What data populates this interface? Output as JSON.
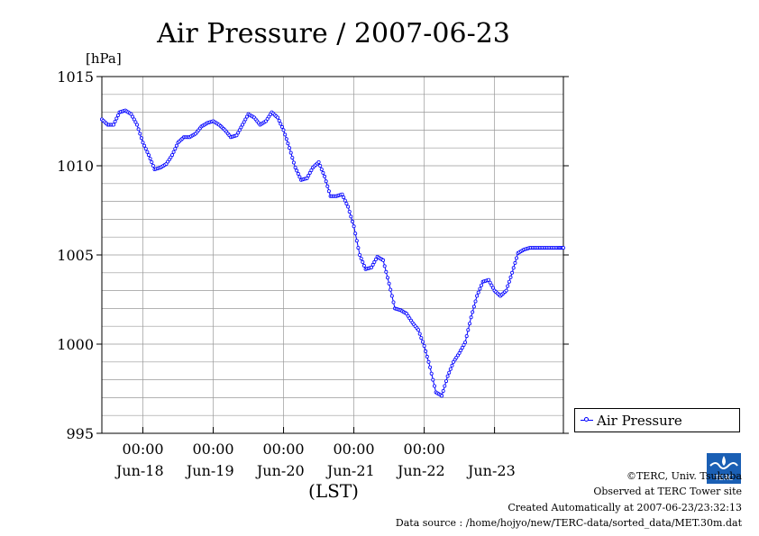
{
  "chart_data": {
    "type": "line",
    "title": "Air Pressure / 2007-06-23",
    "ylabel": "[hPa]",
    "xlabel": "(LST)",
    "ylim": [
      995,
      1015
    ],
    "yticks": [
      995,
      1000,
      1005,
      1010,
      1015
    ],
    "xlim_days": [
      "2007-06-17 10:00",
      "2007-06-23 23:30"
    ],
    "x_time_ticks": [
      "00:00",
      "00:00",
      "00:00",
      "00:00",
      "00:00"
    ],
    "x_date_labels": [
      "Jun-18",
      "Jun-19",
      "Jun-20",
      "Jun-21",
      "Jun-22",
      "Jun-23"
    ],
    "grid": true,
    "legend_position": "right",
    "series": [
      {
        "name": "Air Pressure",
        "color": "#0000ff",
        "marker": "circle",
        "time": [
          "2007-06-17 10:00",
          "2007-06-17 12:00",
          "2007-06-17 14:00",
          "2007-06-17 16:00",
          "2007-06-17 18:00",
          "2007-06-17 20:00",
          "2007-06-17 22:00",
          "2007-06-18 00:00",
          "2007-06-18 02:00",
          "2007-06-18 04:00",
          "2007-06-18 06:00",
          "2007-06-18 08:00",
          "2007-06-18 10:00",
          "2007-06-18 12:00",
          "2007-06-18 14:00",
          "2007-06-18 16:00",
          "2007-06-18 18:00",
          "2007-06-18 20:00",
          "2007-06-18 22:00",
          "2007-06-19 00:00",
          "2007-06-19 02:00",
          "2007-06-19 04:00",
          "2007-06-19 06:00",
          "2007-06-19 08:00",
          "2007-06-19 10:00",
          "2007-06-19 12:00",
          "2007-06-19 14:00",
          "2007-06-19 16:00",
          "2007-06-19 18:00",
          "2007-06-19 20:00",
          "2007-06-19 22:00",
          "2007-06-20 00:00",
          "2007-06-20 02:00",
          "2007-06-20 04:00",
          "2007-06-20 06:00",
          "2007-06-20 08:00",
          "2007-06-20 10:00",
          "2007-06-20 12:00",
          "2007-06-20 14:00",
          "2007-06-20 16:00",
          "2007-06-20 18:00",
          "2007-06-20 20:00",
          "2007-06-20 22:00",
          "2007-06-21 00:00",
          "2007-06-21 02:00",
          "2007-06-21 04:00",
          "2007-06-21 06:00",
          "2007-06-21 08:00",
          "2007-06-21 10:00",
          "2007-06-21 12:00",
          "2007-06-21 14:00",
          "2007-06-21 16:00",
          "2007-06-21 18:00",
          "2007-06-21 20:00",
          "2007-06-21 22:00",
          "2007-06-22 00:00",
          "2007-06-22 02:00",
          "2007-06-22 04:00",
          "2007-06-22 06:00",
          "2007-06-22 08:00",
          "2007-06-22 10:00",
          "2007-06-22 12:00",
          "2007-06-22 14:00",
          "2007-06-22 16:00",
          "2007-06-22 18:00",
          "2007-06-22 20:00",
          "2007-06-22 22:00",
          "2007-06-23 00:00",
          "2007-06-23 02:00",
          "2007-06-23 04:00",
          "2007-06-23 06:00",
          "2007-06-23 08:00",
          "2007-06-23 10:00",
          "2007-06-23 12:00",
          "2007-06-23 14:00",
          "2007-06-23 16:00",
          "2007-06-23 18:00",
          "2007-06-23 20:00",
          "2007-06-23 22:00",
          "2007-06-23 23:30"
        ],
        "values": [
          1012.6,
          1012.3,
          1012.3,
          1013.0,
          1013.1,
          1012.9,
          1012.3,
          1011.3,
          1010.6,
          1009.8,
          1009.9,
          1010.1,
          1010.6,
          1011.3,
          1011.6,
          1011.6,
          1011.8,
          1012.2,
          1012.4,
          1012.5,
          1012.3,
          1012.0,
          1011.6,
          1011.7,
          1012.3,
          1012.9,
          1012.7,
          1012.3,
          1012.5,
          1013.0,
          1012.7,
          1012.0,
          1011.0,
          1009.9,
          1009.2,
          1009.3,
          1009.9,
          1010.2,
          1009.4,
          1008.3,
          1008.3,
          1008.4,
          1007.7,
          1006.6,
          1005.0,
          1004.2,
          1004.3,
          1004.9,
          1004.7,
          1003.4,
          1002.0,
          1001.9,
          1001.7,
          1001.2,
          1000.8,
          999.9,
          998.7,
          997.3,
          997.1,
          998.2,
          999.0,
          999.5,
          1000.1,
          1001.5,
          1002.7,
          1003.5,
          1003.6,
          1003.0,
          1002.7,
          1003.0,
          1004.0,
          1005.1,
          1005.3,
          1005.4,
          1005.4,
          1005.4,
          1005.4,
          1005.4,
          1005.4,
          1005.4
        ]
      }
    ]
  },
  "legend": {
    "label": "Air Pressure"
  },
  "footer": {
    "copyright": "©TERC, Univ. Tsukuba",
    "observed": "Observed at TERC Tower site",
    "created": "Created Automatically at 2007-06-23/23:32:13",
    "source": "Data source : /home/hojyo/new/TERC-data/sorted_data/MET.30m.dat"
  },
  "logo_text": "TERC"
}
